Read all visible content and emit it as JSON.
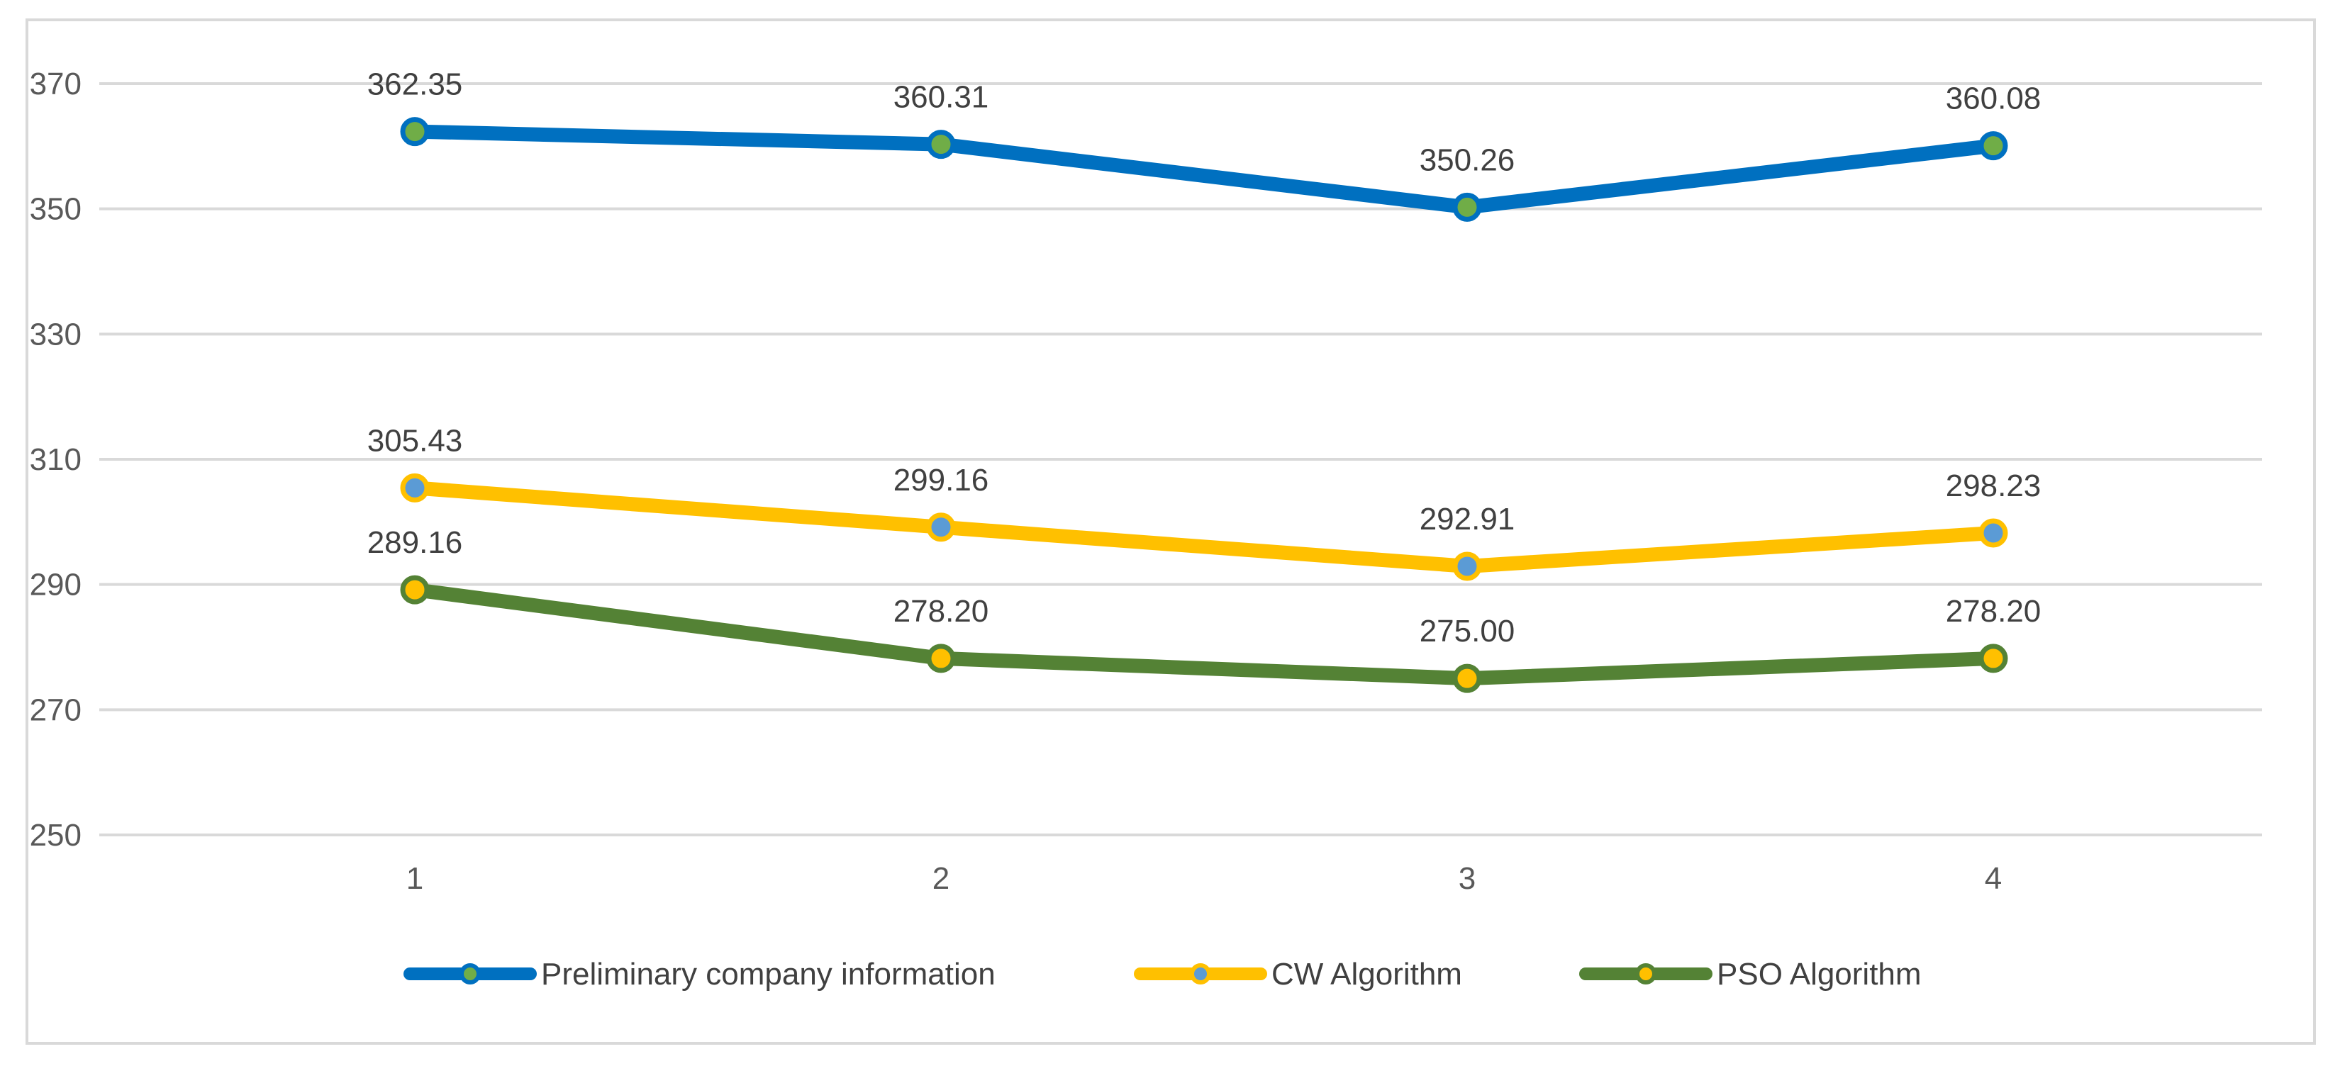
{
  "chart_data": {
    "type": "line",
    "categories": [
      "1",
      "2",
      "3",
      "4"
    ],
    "ylim": [
      250,
      370
    ],
    "yticks": [
      250,
      270,
      290,
      310,
      330,
      350,
      370
    ],
    "grid": true,
    "legend_position": "bottom",
    "title": "",
    "xlabel": "",
    "ylabel": "",
    "series": [
      {
        "name": "Preliminary company information",
        "values": [
          362.35,
          360.31,
          350.26,
          360.08
        ],
        "labels": [
          "362.35",
          "360.31",
          "350.26",
          "360.08"
        ],
        "line_color": "#0070c0",
        "marker_fill": "#70ad47"
      },
      {
        "name": "CW  Algorithm",
        "values": [
          305.43,
          299.16,
          292.91,
          298.23
        ],
        "labels": [
          "305.43",
          "299.16",
          "292.91",
          "298.23"
        ],
        "line_color": "#ffc000",
        "marker_fill": "#5b9bd5"
      },
      {
        "name": "PSO  Algorithm",
        "values": [
          289.16,
          278.2,
          275.0,
          278.2
        ],
        "labels": [
          "289.16",
          "278.20",
          "275.00",
          "278.20"
        ],
        "line_color": "#548235",
        "marker_fill": "#ffc000"
      }
    ],
    "colors": {
      "gridline": "#d9d9d9",
      "tick_text": "#595959",
      "label_text": "#404040",
      "frame": "#d9d9d9"
    }
  }
}
